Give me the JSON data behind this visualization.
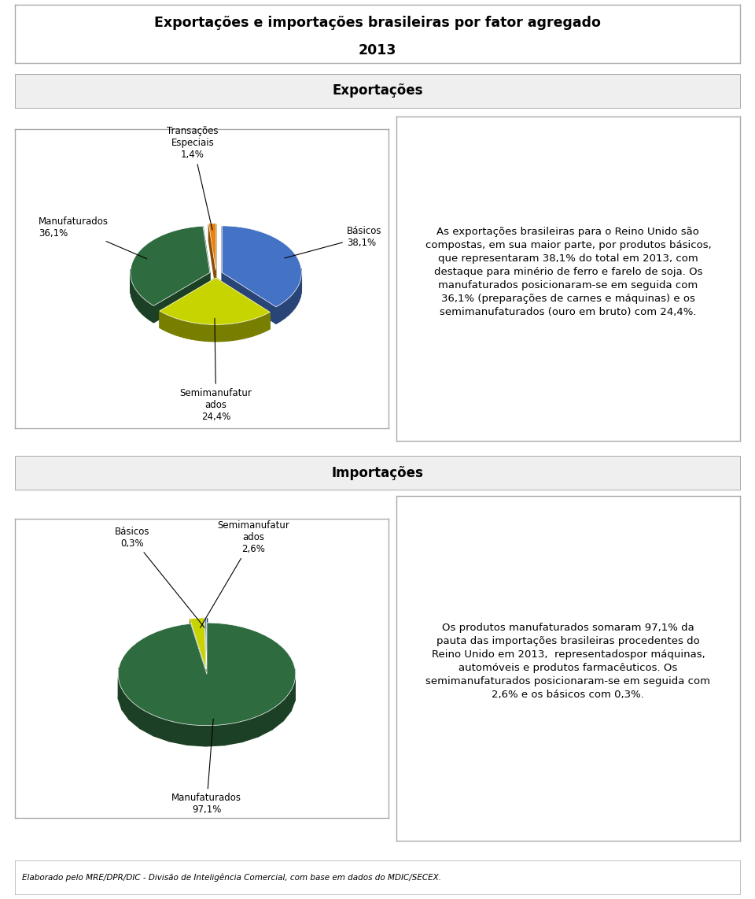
{
  "title_line1": "Exportações e importações brasileiras por fator agregado",
  "title_line2": "2013",
  "section1_label": "Exportações",
  "section2_label": "Importações",
  "footer": "Elaborado pelo MRE/DPR/DIC - Divisão de Inteligência Comercial, com base em dados do MDIC/SECEX.",
  "export_pie": {
    "values": [
      38.1,
      24.4,
      36.1,
      1.4
    ],
    "colors": [
      "#4472C4",
      "#C8D400",
      "#2E6B3E",
      "#E8820A"
    ],
    "startangle": 90,
    "labels": [
      "Básicos\n38,1%",
      "Semimanufatur\nados\n24,4%",
      "Manufaturados\n36,1%",
      "Transações\nEspeciais\n1,4%"
    ]
  },
  "import_pie": {
    "values": [
      97.1,
      2.6,
      0.3
    ],
    "colors": [
      "#2E6B3E",
      "#C8D400",
      "#4472C4"
    ],
    "startangle": 90,
    "labels": [
      "Manufaturados\n97,1%",
      "Semimanufatur\nados\n2,6%",
      "Básicos\n0,3%"
    ]
  },
  "export_text": "As exportações brasileiras para o Reino Unido são\ncompostas, em sua maior parte, por produtos básicos,\nque representaram 38,1% do total em 2013, com\ndestaque para minério de ferro e farelo de soja. Os\nmanufaturados posicionaram-se em seguida com\n36,1% (preparações de carnes e máquinas) e os\nsemimanufaturados (ouro em bruto) com 24,4%.",
  "import_text": "Os produtos manufaturados somaram 97,1% da\npauta das importações brasileiras procedentes do\nReino Unido em 2013,  representadospor máquinas,\nautomóveis e produtos farmacêuticos. Os\nsemimanufaturados posicionaram-se em seguida com\n2,6% e os básicos com 0,3%.",
  "bg_color": "#FFFFFF",
  "section_bg": "#EFEFEF",
  "border_color": "#AAAAAA",
  "gap_color": "#DDDDDD"
}
